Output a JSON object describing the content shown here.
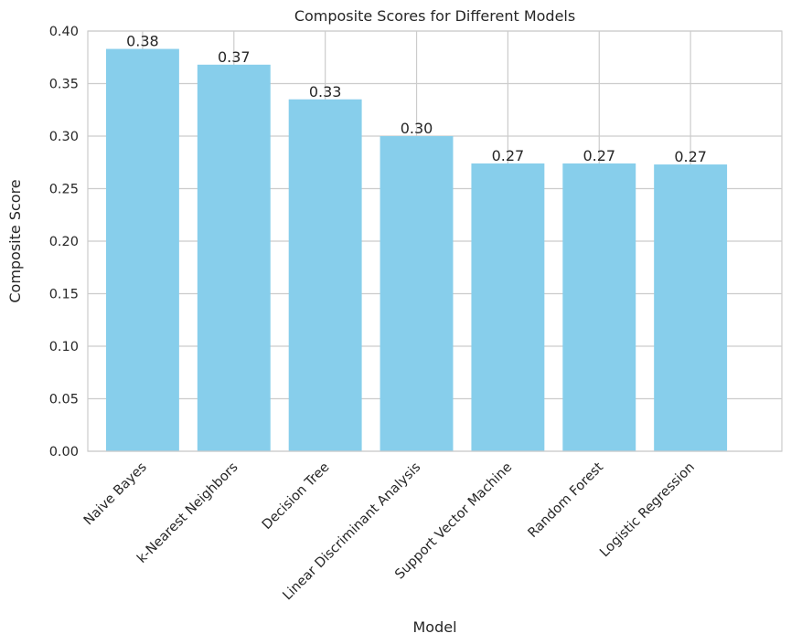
{
  "chart_data": {
    "type": "bar",
    "title": "Composite Scores for Different Models",
    "xlabel": "Model",
    "ylabel": "Composite Score",
    "categories": [
      "Naive Bayes",
      "k-Nearest Neighbors",
      "Decision Tree",
      "Linear Discriminant Analysis",
      "Support Vector Machine",
      "Random Forest",
      "Logistic Regression"
    ],
    "values": [
      0.383,
      0.368,
      0.335,
      0.3,
      0.274,
      0.274,
      0.273
    ],
    "data_labels": [
      "0.38",
      "0.37",
      "0.33",
      "0.30",
      "0.27",
      "0.27",
      "0.27"
    ],
    "ylim": [
      0,
      0.4
    ],
    "yticks": [
      0.0,
      0.05,
      0.1,
      0.15,
      0.2,
      0.25,
      0.3,
      0.35,
      0.4
    ],
    "ytick_labels": [
      "0.00",
      "0.05",
      "0.10",
      "0.15",
      "0.20",
      "0.25",
      "0.30",
      "0.35",
      "0.40"
    ],
    "xtick_rotation_deg": 45,
    "grid": true,
    "legend": "none",
    "colors": {
      "bar": "#87CEEB",
      "grid": "#cccccc",
      "spine": "#cccccc",
      "text": "#262626",
      "background": "#ffffff"
    }
  }
}
